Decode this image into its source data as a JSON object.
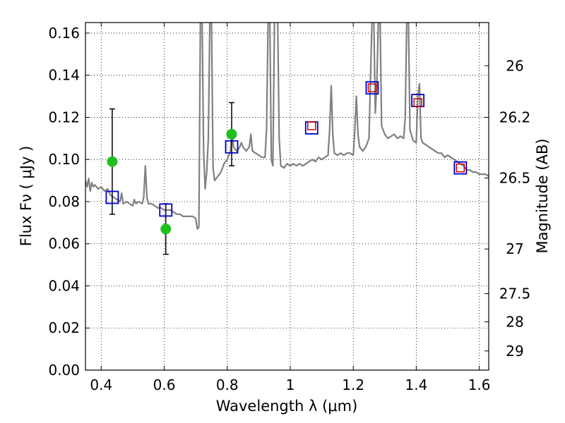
{
  "chart_data": {
    "type": "scatter",
    "title": "",
    "xlabel": "Wavelength  λ (μm)",
    "ylabel": "Flux  Fν  ( μJy )",
    "y2label": "Magnitude (AB)",
    "xlim": [
      0.35,
      1.63
    ],
    "ylim": [
      0.0,
      0.165
    ],
    "grid": true,
    "x_ticks": [
      0.4,
      0.6,
      0.8,
      1.0,
      1.2,
      1.4,
      1.6
    ],
    "x_tick_labels": [
      "0.4",
      "0.6",
      "0.8",
      "1",
      "1.2",
      "1.4",
      "1.6"
    ],
    "y_ticks": [
      0.0,
      0.02,
      0.04,
      0.06,
      0.08,
      0.1,
      0.12,
      0.14,
      0.16
    ],
    "y_tick_labels": [
      "0.00",
      "0.02",
      "0.04",
      "0.06",
      "0.08",
      "0.10",
      "0.12",
      "0.14",
      "0.16"
    ],
    "y2_ticks": [
      {
        "flux": 0.1445,
        "label": "26"
      },
      {
        "flux": 0.12,
        "label": "26.2"
      },
      {
        "flux": 0.0912,
        "label": "26.5"
      },
      {
        "flux": 0.0575,
        "label": "27"
      },
      {
        "flux": 0.0363,
        "label": "27.5"
      },
      {
        "flux": 0.0229,
        "label": "28"
      },
      {
        "flux": 0.0091,
        "label": "29"
      }
    ],
    "series": [
      {
        "kind": "spectrum",
        "color": "#808080",
        "points": [
          [
            0.35,
            0.09
          ],
          [
            0.355,
            0.087
          ],
          [
            0.36,
            0.091
          ],
          [
            0.365,
            0.085
          ],
          [
            0.37,
            0.089
          ],
          [
            0.375,
            0.087
          ],
          [
            0.38,
            0.088
          ],
          [
            0.39,
            0.086
          ],
          [
            0.4,
            0.087
          ],
          [
            0.41,
            0.085
          ],
          [
            0.42,
            0.086
          ],
          [
            0.43,
            0.083
          ],
          [
            0.44,
            0.082
          ],
          [
            0.45,
            0.081
          ],
          [
            0.46,
            0.08
          ],
          [
            0.465,
            0.084
          ],
          [
            0.47,
            0.079
          ],
          [
            0.48,
            0.08
          ],
          [
            0.49,
            0.079
          ],
          [
            0.5,
            0.078
          ],
          [
            0.505,
            0.081
          ],
          [
            0.51,
            0.079
          ],
          [
            0.52,
            0.08
          ],
          [
            0.53,
            0.079
          ],
          [
            0.535,
            0.082
          ],
          [
            0.54,
            0.097
          ],
          [
            0.545,
            0.082
          ],
          [
            0.55,
            0.079
          ],
          [
            0.56,
            0.079
          ],
          [
            0.57,
            0.078
          ],
          [
            0.58,
            0.077
          ],
          [
            0.59,
            0.077
          ],
          [
            0.6,
            0.076
          ],
          [
            0.61,
            0.076
          ],
          [
            0.62,
            0.076
          ],
          [
            0.63,
            0.075
          ],
          [
            0.64,
            0.074
          ],
          [
            0.65,
            0.074
          ],
          [
            0.66,
            0.073
          ],
          [
            0.67,
            0.073
          ],
          [
            0.68,
            0.073
          ],
          [
            0.69,
            0.073
          ],
          [
            0.7,
            0.072
          ],
          [
            0.705,
            0.067
          ],
          [
            0.71,
            0.068
          ],
          [
            0.715,
            0.1685
          ],
          [
            0.72,
            0.1685
          ],
          [
            0.725,
            0.104
          ],
          [
            0.73,
            0.086
          ],
          [
            0.735,
            0.094
          ],
          [
            0.74,
            0.11
          ],
          [
            0.745,
            0.1685
          ],
          [
            0.75,
            0.1685
          ],
          [
            0.755,
            0.096
          ],
          [
            0.76,
            0.09
          ],
          [
            0.77,
            0.092
          ],
          [
            0.78,
            0.094
          ],
          [
            0.79,
            0.098
          ],
          [
            0.8,
            0.1
          ],
          [
            0.81,
            0.104
          ],
          [
            0.815,
            0.113
          ],
          [
            0.82,
            0.106
          ],
          [
            0.83,
            0.104
          ],
          [
            0.84,
            0.106
          ],
          [
            0.845,
            0.108
          ],
          [
            0.85,
            0.106
          ],
          [
            0.86,
            0.104
          ],
          [
            0.87,
            0.106
          ],
          [
            0.875,
            0.112
          ],
          [
            0.88,
            0.104
          ],
          [
            0.89,
            0.103
          ],
          [
            0.9,
            0.102
          ],
          [
            0.91,
            0.101
          ],
          [
            0.92,
            0.101
          ],
          [
            0.925,
            0.115
          ],
          [
            0.93,
            0.1685
          ],
          [
            0.935,
            0.1685
          ],
          [
            0.94,
            0.1
          ],
          [
            0.945,
            0.097
          ],
          [
            0.95,
            0.1685
          ],
          [
            0.955,
            0.1685
          ],
          [
            0.96,
            0.1685
          ],
          [
            0.965,
            0.11
          ],
          [
            0.97,
            0.097
          ],
          [
            0.98,
            0.096
          ],
          [
            0.99,
            0.098
          ],
          [
            1.0,
            0.097
          ],
          [
            1.01,
            0.098
          ],
          [
            1.02,
            0.097
          ],
          [
            1.03,
            0.098
          ],
          [
            1.04,
            0.097
          ],
          [
            1.05,
            0.098
          ],
          [
            1.06,
            0.099
          ],
          [
            1.07,
            0.1
          ],
          [
            1.08,
            0.099
          ],
          [
            1.09,
            0.101
          ],
          [
            1.1,
            0.1
          ],
          [
            1.11,
            0.101
          ],
          [
            1.12,
            0.102
          ],
          [
            1.125,
            0.114
          ],
          [
            1.13,
            0.135
          ],
          [
            1.135,
            0.112
          ],
          [
            1.14,
            0.103
          ],
          [
            1.15,
            0.102
          ],
          [
            1.16,
            0.103
          ],
          [
            1.17,
            0.102
          ],
          [
            1.18,
            0.103
          ],
          [
            1.19,
            0.103
          ],
          [
            1.2,
            0.102
          ],
          [
            1.205,
            0.114
          ],
          [
            1.21,
            0.13
          ],
          [
            1.215,
            0.112
          ],
          [
            1.22,
            0.106
          ],
          [
            1.23,
            0.104
          ],
          [
            1.24,
            0.106
          ],
          [
            1.25,
            0.11
          ],
          [
            1.26,
            0.1685
          ],
          [
            1.265,
            0.1685
          ],
          [
            1.27,
            0.122
          ],
          [
            1.275,
            0.136
          ],
          [
            1.28,
            0.1685
          ],
          [
            1.285,
            0.1685
          ],
          [
            1.29,
            0.116
          ],
          [
            1.3,
            0.112
          ],
          [
            1.31,
            0.11
          ],
          [
            1.32,
            0.111
          ],
          [
            1.33,
            0.112
          ],
          [
            1.34,
            0.11
          ],
          [
            1.35,
            0.111
          ],
          [
            1.36,
            0.11
          ],
          [
            1.365,
            0.12
          ],
          [
            1.37,
            0.1685
          ],
          [
            1.375,
            0.1685
          ],
          [
            1.38,
            0.114
          ],
          [
            1.39,
            0.109
          ],
          [
            1.4,
            0.108
          ],
          [
            1.405,
            0.13
          ],
          [
            1.41,
            0.136
          ],
          [
            1.415,
            0.11
          ],
          [
            1.42,
            0.108
          ],
          [
            1.43,
            0.107
          ],
          [
            1.44,
            0.106
          ],
          [
            1.45,
            0.105
          ],
          [
            1.46,
            0.104
          ],
          [
            1.47,
            0.103
          ],
          [
            1.48,
            0.103
          ],
          [
            1.49,
            0.101
          ],
          [
            1.5,
            0.102
          ],
          [
            1.51,
            0.101
          ],
          [
            1.52,
            0.1
          ],
          [
            1.53,
            0.099
          ],
          [
            1.54,
            0.098
          ],
          [
            1.55,
            0.097
          ],
          [
            1.56,
            0.095
          ],
          [
            1.57,
            0.095
          ],
          [
            1.58,
            0.094
          ],
          [
            1.59,
            0.094
          ],
          [
            1.6,
            0.093
          ],
          [
            1.61,
            0.093
          ],
          [
            1.62,
            0.093
          ],
          [
            1.63,
            0.092
          ]
        ]
      },
      {
        "kind": "observed",
        "color": "#1fbf1f",
        "points": [
          {
            "x": 0.435,
            "y": 0.099,
            "err": 0.025
          },
          {
            "x": 0.605,
            "y": 0.067,
            "err": 0.012
          },
          {
            "x": 0.814,
            "y": 0.112,
            "err": 0.015
          }
        ]
      },
      {
        "kind": "model-broadband",
        "color": "#0000cc",
        "points": [
          {
            "x": 0.435,
            "y": 0.082
          },
          {
            "x": 0.605,
            "y": 0.076
          },
          {
            "x": 0.814,
            "y": 0.106
          },
          {
            "x": 1.068,
            "y": 0.115
          },
          {
            "x": 1.26,
            "y": 0.134
          },
          {
            "x": 1.405,
            "y": 0.128
          },
          {
            "x": 1.54,
            "y": 0.096
          }
        ]
      },
      {
        "kind": "model-ir",
        "color": "#cc0000",
        "points": [
          {
            "x": 1.068,
            "y": 0.116
          },
          {
            "x": 1.26,
            "y": 0.134
          },
          {
            "x": 1.405,
            "y": 0.127
          },
          {
            "x": 1.54,
            "y": 0.096
          }
        ]
      }
    ]
  }
}
